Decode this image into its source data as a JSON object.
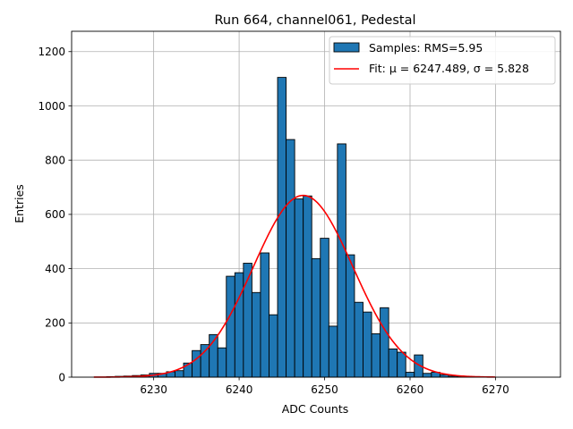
{
  "chart_data": {
    "type": "bar",
    "title": "Run 664, channel061, Pedestal",
    "xlabel": "ADC Counts",
    "ylabel": "Entries",
    "xlim": [
      6220.4,
      6277.6
    ],
    "ylim": [
      0,
      1275
    ],
    "xticks": [
      6230,
      6240,
      6250,
      6260,
      6270
    ],
    "yticks": [
      0,
      200,
      400,
      600,
      800,
      1000,
      1200
    ],
    "grid": true,
    "legend_position": "top-right",
    "colors": {
      "bar": "#1f77b4",
      "fit": "#ff0000"
    },
    "histogram": {
      "name": "Samples: RMS=5.95",
      "bin_width": 1,
      "bins": [
        {
          "x": 6225,
          "y": 2
        },
        {
          "x": 6226,
          "y": 3
        },
        {
          "x": 6227,
          "y": 4
        },
        {
          "x": 6228,
          "y": 6
        },
        {
          "x": 6229,
          "y": 8
        },
        {
          "x": 6230,
          "y": 14
        },
        {
          "x": 6231,
          "y": 14
        },
        {
          "x": 6232,
          "y": 20
        },
        {
          "x": 6233,
          "y": 24
        },
        {
          "x": 6234,
          "y": 52
        },
        {
          "x": 6235,
          "y": 98
        },
        {
          "x": 6236,
          "y": 120
        },
        {
          "x": 6237,
          "y": 157
        },
        {
          "x": 6238,
          "y": 108
        },
        {
          "x": 6239,
          "y": 372
        },
        {
          "x": 6240,
          "y": 385
        },
        {
          "x": 6241,
          "y": 420
        },
        {
          "x": 6242,
          "y": 312
        },
        {
          "x": 6243,
          "y": 458
        },
        {
          "x": 6244,
          "y": 230
        },
        {
          "x": 6245,
          "y": 1105
        },
        {
          "x": 6246,
          "y": 876
        },
        {
          "x": 6247,
          "y": 657
        },
        {
          "x": 6248,
          "y": 668
        },
        {
          "x": 6249,
          "y": 437
        },
        {
          "x": 6250,
          "y": 512
        },
        {
          "x": 6251,
          "y": 188
        },
        {
          "x": 6252,
          "y": 860
        },
        {
          "x": 6253,
          "y": 451
        },
        {
          "x": 6254,
          "y": 276
        },
        {
          "x": 6255,
          "y": 240
        },
        {
          "x": 6256,
          "y": 160
        },
        {
          "x": 6257,
          "y": 256
        },
        {
          "x": 6258,
          "y": 104
        },
        {
          "x": 6259,
          "y": 92
        },
        {
          "x": 6260,
          "y": 18
        },
        {
          "x": 6261,
          "y": 82
        },
        {
          "x": 6262,
          "y": 14
        },
        {
          "x": 6263,
          "y": 18
        },
        {
          "x": 6264,
          "y": 9
        },
        {
          "x": 6265,
          "y": 4
        },
        {
          "x": 6266,
          "y": 3
        },
        {
          "x": 6267,
          "y": 2
        },
        {
          "x": 6268,
          "y": 1
        }
      ]
    },
    "fit": {
      "name": "Fit: μ = 6247.489, σ = 5.828",
      "type": "gaussian",
      "mu": 6247.489,
      "sigma": 5.828,
      "amplitude": 670,
      "x_range": [
        6223,
        6270
      ]
    }
  }
}
